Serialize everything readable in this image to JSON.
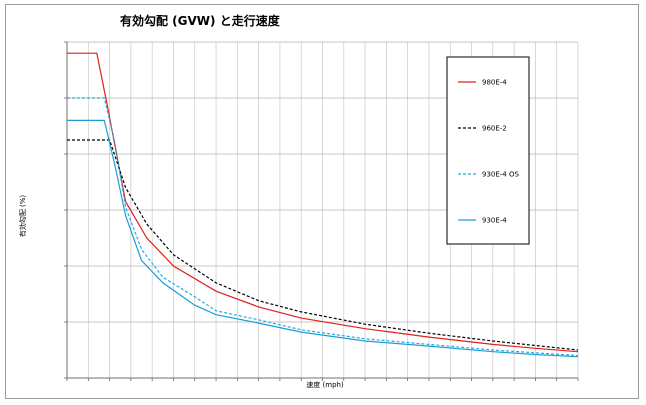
{
  "chart_data": {
    "type": "line",
    "title": "有効勾配 (GVW) と走行速度",
    "xlabel": "速度 (mph)",
    "ylabel": "有効勾配 (%)",
    "xlim": [
      0,
      48
    ],
    "ylim": [
      0,
      6
    ],
    "grid": true,
    "legend_position": "right",
    "series": [
      {
        "name": "980E-4",
        "color": "#e0201b",
        "dash": "solid",
        "x": [
          0,
          2.8,
          3.8,
          5.5,
          7.5,
          10,
          14,
          18,
          22,
          28,
          34,
          40,
          44,
          48
        ],
        "y": [
          5.8,
          5.8,
          4.85,
          3.15,
          2.5,
          2.0,
          1.55,
          1.27,
          1.07,
          0.88,
          0.73,
          0.6,
          0.53,
          0.47
        ]
      },
      {
        "name": "960E-2",
        "color": "#000000",
        "dash": "dashed",
        "x": [
          0,
          4,
          5.5,
          7.5,
          10,
          14,
          18,
          22,
          28,
          34,
          40,
          44,
          48
        ],
        "y": [
          4.25,
          4.25,
          3.4,
          2.75,
          2.2,
          1.7,
          1.38,
          1.18,
          0.96,
          0.8,
          0.66,
          0.58,
          0.5
        ]
      },
      {
        "name": "930E-4 OS",
        "color": "#29a8e0",
        "dash": "dashed",
        "x": [
          0,
          3.5,
          4.5,
          5.5,
          7,
          9,
          12,
          14,
          18,
          22,
          28,
          34,
          40,
          44,
          48
        ],
        "y": [
          5.0,
          5.0,
          4.2,
          3.05,
          2.3,
          1.8,
          1.45,
          1.2,
          1.04,
          0.86,
          0.7,
          0.6,
          0.5,
          0.45,
          0.4
        ]
      },
      {
        "name": "930E-4",
        "color": "#1a9fd9",
        "dash": "solid",
        "x": [
          0,
          3.5,
          4.5,
          5.5,
          7,
          9,
          12,
          14,
          18,
          22,
          28,
          34,
          40,
          44,
          48
        ],
        "y": [
          4.6,
          4.6,
          3.8,
          2.9,
          2.1,
          1.7,
          1.3,
          1.13,
          0.98,
          0.82,
          0.66,
          0.57,
          0.47,
          0.42,
          0.38
        ]
      }
    ]
  }
}
